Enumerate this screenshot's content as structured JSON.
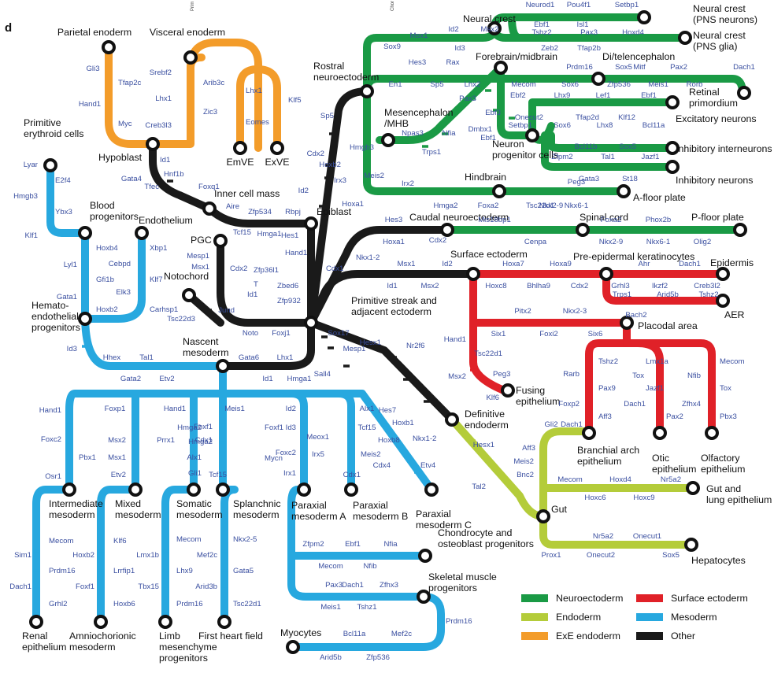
{
  "panel_label": "d",
  "header_fragments": [
    "Prim",
    "Chor"
  ],
  "colors": {
    "neuroectoderm": "#1a9a45",
    "endoderm": "#b4cc3a",
    "exe_endoderm": "#f39c2a",
    "surface_ectoderm": "#e02128",
    "mesoderm": "#27a8df",
    "other": "#1a1a1a",
    "gene_text": "#3a4fa0"
  },
  "legend": [
    {
      "key": "neuroectoderm",
      "label": "Neuroectoderm"
    },
    {
      "key": "surface_ectoderm",
      "label": "Surface ectoderm"
    },
    {
      "key": "endoderm",
      "label": "Endoderm"
    },
    {
      "key": "mesoderm",
      "label": "Mesoderm"
    },
    {
      "key": "exe_endoderm",
      "label": "ExE endoderm"
    },
    {
      "key": "other",
      "label": "Other"
    }
  ],
  "stations": [
    {
      "id": "parietal",
      "lines": [
        "Parietal enoderm"
      ]
    },
    {
      "id": "visceral",
      "lines": [
        "Visceral enoderm"
      ]
    },
    {
      "id": "primitive_erythroid",
      "lines": [
        "Primitive",
        "erythroid cells"
      ]
    },
    {
      "id": "hypoblast",
      "lines": [
        "Hypoblast"
      ]
    },
    {
      "id": "emve",
      "lines": [
        "EmVE"
      ]
    },
    {
      "id": "exve",
      "lines": [
        "ExVE"
      ]
    },
    {
      "id": "rostral_neuro",
      "lines": [
        "Rostral",
        "neuroectoderm"
      ]
    },
    {
      "id": "neural_crest",
      "lines": [
        "Neural crest"
      ]
    },
    {
      "id": "nc_pns_neurons",
      "lines": [
        "Neural crest",
        "(PNS neurons)"
      ]
    },
    {
      "id": "nc_pns_glia",
      "lines": [
        "Neural crest",
        "(PNS glia)"
      ]
    },
    {
      "id": "forebrain",
      "lines": [
        "Forebrain/midbrain"
      ]
    },
    {
      "id": "di_tel",
      "lines": [
        "Di/telencephalon"
      ]
    },
    {
      "id": "retinal",
      "lines": [
        "Retinal",
        "primordium"
      ]
    },
    {
      "id": "mesencephalon",
      "lines": [
        "Mesencephalon",
        "/MHB"
      ]
    },
    {
      "id": "excitatory",
      "lines": [
        "Excitatory neurons"
      ]
    },
    {
      "id": "neuron_prog",
      "lines": [
        "Neuron",
        "progenitor cells"
      ]
    },
    {
      "id": "inhib_inter",
      "lines": [
        "Inhibitory interneurons"
      ]
    },
    {
      "id": "inhib_neurons",
      "lines": [
        "Inhibitory neurons"
      ]
    },
    {
      "id": "hindbrain",
      "lines": [
        "Hindbrain"
      ]
    },
    {
      "id": "a_floor",
      "lines": [
        "A-floor plate"
      ]
    },
    {
      "id": "inner_cell_mass",
      "lines": [
        "Inner cell mass"
      ]
    },
    {
      "id": "epiblast",
      "lines": [
        "Epiblast"
      ]
    },
    {
      "id": "blood_prog",
      "lines": [
        "Blood",
        "progenitors"
      ]
    },
    {
      "id": "endothelium",
      "lines": [
        "Endothelium"
      ]
    },
    {
      "id": "caudal_neuro",
      "lines": [
        "Caudal neuroectoderm"
      ]
    },
    {
      "id": "spinal_cord",
      "lines": [
        "Spinal cord"
      ]
    },
    {
      "id": "p_floor",
      "lines": [
        "P-floor plate"
      ]
    },
    {
      "id": "pgc",
      "lines": [
        "PGC"
      ]
    },
    {
      "id": "surface_ecto",
      "lines": [
        "Surface ectoderm"
      ]
    },
    {
      "id": "pre_epi",
      "lines": [
        "Pre-epidermal keratinocytes"
      ]
    },
    {
      "id": "epidermis",
      "lines": [
        "Epidermis"
      ]
    },
    {
      "id": "aer",
      "lines": [
        "AER"
      ]
    },
    {
      "id": "notochord",
      "lines": [
        "Notochord"
      ]
    },
    {
      "id": "hemato",
      "lines": [
        "Hemato-",
        "endothelial",
        "progenitors"
      ]
    },
    {
      "id": "primitive_streak",
      "lines": [
        "Primitive streak and",
        "adjacent ectoderm"
      ]
    },
    {
      "id": "placodal",
      "lines": [
        "Placodal area"
      ]
    },
    {
      "id": "nascent_meso",
      "lines": [
        "Nascent",
        "mesoderm"
      ]
    },
    {
      "id": "fusing_epi",
      "lines": [
        "Fusing",
        "epithelium"
      ]
    },
    {
      "id": "definitive_endo",
      "lines": [
        "Definitive",
        "endoderm"
      ]
    },
    {
      "id": "branchial",
      "lines": [
        "Branchial arch",
        "epithelium"
      ]
    },
    {
      "id": "otic",
      "lines": [
        "Otic",
        "epithelium"
      ]
    },
    {
      "id": "olfactory",
      "lines": [
        "Olfactory",
        "epithelium"
      ]
    },
    {
      "id": "intermediate_meso",
      "lines": [
        "Intermediate",
        "mesoderm"
      ]
    },
    {
      "id": "mixed_meso",
      "lines": [
        "Mixed",
        "mesoderm"
      ]
    },
    {
      "id": "somatic_meso",
      "lines": [
        "Somatic",
        "mesoderm"
      ]
    },
    {
      "id": "splanchnic_meso",
      "lines": [
        "Splanchnic",
        "mesoderm"
      ]
    },
    {
      "id": "paraxial_a",
      "lines": [
        "Paraxial",
        "mesoderm A"
      ]
    },
    {
      "id": "paraxial_b",
      "lines": [
        "Paraxial",
        "mesoderm B"
      ]
    },
    {
      "id": "paraxial_c",
      "lines": [
        "Paraxial",
        "mesoderm C"
      ]
    },
    {
      "id": "gut",
      "lines": [
        "Gut"
      ]
    },
    {
      "id": "gut_lung",
      "lines": [
        "Gut and",
        "lung epithelium"
      ]
    },
    {
      "id": "chondrocyte",
      "lines": [
        "Chondrocyte and",
        "osteoblast progenitors"
      ]
    },
    {
      "id": "hepatocytes",
      "lines": [
        "Hepatocytes"
      ]
    },
    {
      "id": "skeletal_muscle",
      "lines": [
        "Skeletal muscle",
        "progenitors"
      ]
    },
    {
      "id": "renal",
      "lines": [
        "Renal",
        "epithelium"
      ]
    },
    {
      "id": "amniochorionic",
      "lines": [
        "Amniochorionic",
        "mesoderm"
      ]
    },
    {
      "id": "limb",
      "lines": [
        "Limb",
        "mesenchyme",
        "progenitors"
      ]
    },
    {
      "id": "first_heart",
      "lines": [
        "First heart field"
      ]
    },
    {
      "id": "myocytes",
      "lines": [
        "Myocytes"
      ]
    }
  ],
  "genes": [
    "Gli3",
    "Tfap2c",
    "Hand1",
    "Myc",
    "Srebf2",
    "Arib3c",
    "Lhx1",
    "Zic3",
    "Creb3l3",
    "Lhx1",
    "Klf5",
    "Eomes",
    "Lyar",
    "E2f4",
    "Hmgb3",
    "Ybx3",
    "Klf1",
    "Id1",
    "Gata4",
    "Hnf1b",
    "Tfec",
    "Foxq1",
    "Aire",
    "Zfp534",
    "Rbpj",
    "Hmga1",
    "Sp5",
    "Cdx2",
    "Hmgb3",
    "Hoxb2",
    "Irx3",
    "Id2",
    "Hoxa1",
    "Sox9",
    "Msx1",
    "Id2",
    "Msx2",
    "Id3",
    "Neurod1",
    "Pou4f1",
    "Setbp1",
    "Ebf1",
    "Isl1",
    "Tshz2",
    "Pax3",
    "Hoxd4",
    "Zeb2",
    "Tfap2b",
    "Hes3",
    "Rax",
    "En1",
    "Sp5",
    "Lhx2",
    "Prdm16",
    "Sox5",
    "Pax2",
    "Dach1",
    "Mecom",
    "Sox6",
    "Zfp536",
    "Mitf",
    "Meis1",
    "Rorb",
    "Pax3",
    "Ebf2",
    "Ebf3",
    "Npas3",
    "Nfia",
    "Trps1",
    "Dmbx1",
    "Ebf1",
    "Onecut2",
    "Setbp1",
    "Lhx9",
    "Lef1",
    "Ebf1",
    "Tfap2d",
    "Klf12",
    "Sox6",
    "Lhx8",
    "Bcl11a",
    "Bcl11b",
    "Sox5",
    "Zfpm2",
    "Tal1",
    "Jazf1",
    "Gata3",
    "St18",
    "Meis2",
    "Irx2",
    "Hmga2",
    "Foxa2",
    "Tsc22d1",
    "Peg3",
    "Nkx6-1",
    "Nkx2-9",
    "Hoxb4",
    "Xbp1",
    "Cebpd",
    "Lyl1",
    "Gfi1b",
    "Klf7",
    "Elk3",
    "Gata1",
    "Carhsp1",
    "Hoxb2",
    "Id3",
    "Hes3",
    "Cdx2",
    "Mis18bp1",
    "Foxa2",
    "Phox2b",
    "Hoxa1",
    "Cenpa",
    "Nkx2-9",
    "Nkx6-1",
    "Olig2",
    "Tcf15",
    "Mesp1",
    "Msx1",
    "Cdx2",
    "Zfp36l1",
    "T",
    "Zbed6",
    "Id1",
    "Zfp932",
    "Hes1",
    "Hand1",
    "Cdx1",
    "Nkx1-2",
    "Msx1",
    "Msx2",
    "Id1",
    "Id2",
    "Hoxa7",
    "Hoxa9",
    "Hoxc8",
    "Bhlha9",
    "Cdx2",
    "Ahr",
    "Dach1",
    "Grhl3",
    "Ikzf2",
    "Creb3l2",
    "Trps1",
    "Arid5b",
    "Tshz2",
    "Jund",
    "Tsc22d3",
    "Noto",
    "Foxj1",
    "Sox17",
    "Mesp1",
    "Hesx1",
    "Nr2f6",
    "Pitx2",
    "Nkx2-3",
    "Bach2",
    "Six1",
    "Foxi2",
    "Six6",
    "Hand1",
    "Tsc22d1",
    "Peg3",
    "Msx2",
    "Klf6",
    "Tshz2",
    "Lmx1a",
    "Mecom",
    "Tox",
    "Nfib",
    "Rarb",
    "Pax9",
    "Jazf1",
    "Tox",
    "Foxp2",
    "Dach1",
    "Zfhx4",
    "Aff3",
    "Pax2",
    "Pbx3",
    "Hhex",
    "Tal1",
    "Gata2",
    "Etv2",
    "Gata6",
    "Lhx1",
    "Id1",
    "Hmga1",
    "Sall4",
    "Hand1",
    "Foxp1",
    "Hand1",
    "Foxf1",
    "Meis1",
    "Id2",
    "Alx1",
    "Hes7",
    "Cdx1",
    "Hmga2",
    "Foxf1",
    "Id3",
    "Tcf15",
    "Hoxb1",
    "Foxc2",
    "Msx2",
    "Prrx1",
    "Hmga2",
    "Meox1",
    "Hoxb8",
    "Nkx1-2",
    "Pbx1",
    "Msx1",
    "Alx1",
    "Foxc2",
    "Mycn",
    "Irx5",
    "Meis2",
    "Osr1",
    "Etv2",
    "Gli1",
    "Tcf15",
    "Irx1",
    "Cdx1",
    "Cdx4",
    "Etv4",
    "Hesx1",
    "Aff3",
    "Meis2",
    "Bnc2",
    "Tal2",
    "Gli2",
    "Dach1",
    "Mecom",
    "Hoxd4",
    "Nr5a2",
    "Hoxc6",
    "Hoxc9",
    "Nr5a2",
    "Onecut1",
    "Prox1",
    "Onecut2",
    "Sox5",
    "Sim1",
    "Mecom",
    "Prdm16",
    "Dach1",
    "Grhl2",
    "Hoxb2",
    "Klf6",
    "Lrrfip1",
    "Foxf1",
    "Hoxb6",
    "Lmx1b",
    "Mecom",
    "Lhx9",
    "Tbx15",
    "Prdm16",
    "Mef2c",
    "Nkx2-5",
    "Gata5",
    "Arid3b",
    "Tsc22d1",
    "Zfpm2",
    "Ebf1",
    "Nfia",
    "Mecom",
    "Nfib",
    "Pax3",
    "Dach1",
    "Zfhx3",
    "Meis1",
    "Tshz1",
    "Prdm16",
    "Bcl11a",
    "Mef2c",
    "Arid5b",
    "Zfp536"
  ]
}
